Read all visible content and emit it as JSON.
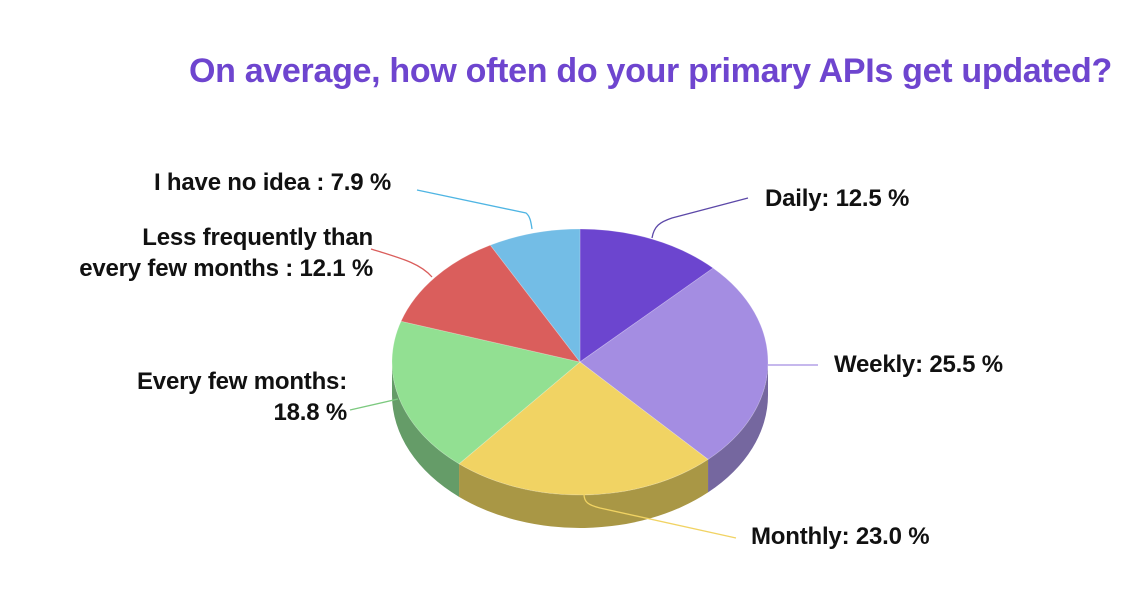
{
  "title": "On average, how often do your primary APIs get updated?",
  "colors": {
    "title": "#6e45cf",
    "label_text": "#111111"
  },
  "chart_data": {
    "type": "pie",
    "style": "3d",
    "title": "On average, how often do your primary APIs get updated?",
    "unit": "%",
    "legend": "none (callout labels)",
    "slices": [
      {
        "name": "Daily",
        "value": 12.5,
        "label": "Daily: 12.5 %",
        "color": "#6c45cf",
        "side_color": "#52349f",
        "line_color": "#5c48a8"
      },
      {
        "name": "Weekly",
        "value": 25.5,
        "label": "Weekly: 25.5 %",
        "color": "#a48de2",
        "side_color": "#75679f",
        "line_color": "#a48de2"
      },
      {
        "name": "Monthly",
        "value": 23.0,
        "label": "Monthly: 23.0 %",
        "color": "#f1d363",
        "side_color": "#a99745",
        "line_color": "#f1d363"
      },
      {
        "name": "Every few months",
        "value": 18.8,
        "label_line1": "Every few months:",
        "label_line2": "18.8 %",
        "color": "#92e092",
        "side_color": "#659c68",
        "line_color": "#7cc97f"
      },
      {
        "name": "Less frequently than every few months",
        "value": 12.1,
        "label_line1": "Less frequently than",
        "label_line2": "every few months : 12.1 %",
        "color": "#da5e5c",
        "side_color": "#9a4341",
        "line_color": "#da5e5c"
      },
      {
        "name": "I have no idea",
        "value": 7.9,
        "label": "I have no idea : 7.9 %",
        "color": "#73bde6",
        "side_color": "#5186a2",
        "line_color": "#4fb5e3"
      }
    ]
  },
  "labels": {
    "daily": "Daily: 12.5 %",
    "weekly": "Weekly: 25.5 %",
    "monthly": "Monthly: 23.0 %",
    "every_few_months_1": "Every few months:",
    "every_few_months_2": "18.8 %",
    "less_frequently_1": "Less frequently than",
    "less_frequently_2": "every few months : 12.1 %",
    "no_idea": "I have no idea : 7.9 %"
  }
}
